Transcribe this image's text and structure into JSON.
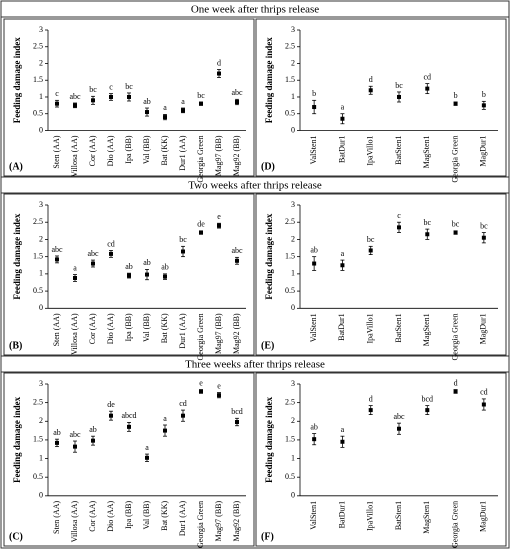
{
  "row_titles": [
    "One week after thrips release",
    "Two weeks after thrips release",
    "Three weeks after thrips release"
  ],
  "chart_data": [
    {
      "type": "errorbar",
      "label": "(A)",
      "ylabel": "Feeding damage index",
      "ylim": [
        0,
        3
      ],
      "yticks": [
        0,
        0.5,
        1,
        1.5,
        2,
        2.5,
        3
      ],
      "color": "#000000",
      "categories": [
        "Sten (AA)",
        "Villosa (AA)",
        "Cor (AA)",
        "Dio (AA)",
        "Ipa (BB)",
        "Val (BB)",
        "Bat (KK)",
        "Dur1 (AA)",
        "Georgia Green",
        "Mag97 (BB)",
        "Mag92 (BB)"
      ],
      "values": [
        0.8,
        0.75,
        0.9,
        1.0,
        1.0,
        0.55,
        0.4,
        0.6,
        0.8,
        1.7,
        0.85
      ],
      "errors": [
        0.1,
        0.07,
        0.12,
        0.1,
        0.12,
        0.12,
        0.08,
        0.07,
        0.05,
        0.12,
        0.08
      ],
      "annotations": [
        "c",
        "abc",
        "bc",
        "c",
        "bc",
        "ab",
        "a",
        "a",
        "bc",
        "d",
        "abc"
      ]
    },
    {
      "type": "errorbar",
      "label": "(D)",
      "ylabel": "Feeding damage index",
      "ylim": [
        0,
        3
      ],
      "yticks": [
        0,
        0.5,
        1,
        1.5,
        2,
        2.5,
        3
      ],
      "color": "#000000",
      "categories": [
        "ValSten1",
        "BatDur1",
        "IpaVillo1",
        "BatSten1",
        "MagSten1",
        "Georgia Green",
        "MagDur1"
      ],
      "values": [
        0.7,
        0.35,
        1.2,
        1.0,
        1.25,
        0.8,
        0.75
      ],
      "errors": [
        0.2,
        0.15,
        0.12,
        0.15,
        0.15,
        0.05,
        0.12
      ],
      "annotations": [
        "b",
        "a",
        "d",
        "bc",
        "cd",
        "b",
        "b"
      ]
    },
    {
      "type": "errorbar",
      "label": "(B)",
      "ylabel": "Feeding damage index",
      "ylim": [
        0,
        3
      ],
      "yticks": [
        0,
        0.5,
        1,
        1.5,
        2,
        2.5,
        3
      ],
      "color": "#000000",
      "categories": [
        "Sten (AA)",
        "Villosa (AA)",
        "Cor (AA)",
        "Dio (AA)",
        "Ipa (BB)",
        "Val (BB)",
        "Bat (KK)",
        "Dur1 (AA)",
        "Georgia Green",
        "Mag97 (BB)",
        "Mag92 (BB)"
      ],
      "values": [
        1.42,
        0.88,
        1.3,
        1.58,
        0.95,
        0.98,
        0.92,
        1.65,
        2.2,
        2.4,
        1.38
      ],
      "errors": [
        0.1,
        0.1,
        0.1,
        0.1,
        0.07,
        0.15,
        0.08,
        0.15,
        0.05,
        0.07,
        0.1
      ],
      "annotations": [
        "abc",
        "a",
        "abc",
        "cd",
        "ab",
        "ab",
        "ab",
        "bc",
        "de",
        "e",
        "abc"
      ]
    },
    {
      "type": "errorbar",
      "label": "(E)",
      "ylabel": "Feeding damage index",
      "ylim": [
        0,
        3
      ],
      "yticks": [
        0,
        0.5,
        1,
        1.5,
        2,
        2.5,
        3
      ],
      "color": "#000000",
      "categories": [
        "ValSten1",
        "BatDur1",
        "IpaVillo1",
        "BatSten1",
        "MagSten1",
        "Georgia Green",
        "MagDur1"
      ],
      "values": [
        1.3,
        1.25,
        1.68,
        2.35,
        2.15,
        2.2,
        2.05
      ],
      "errors": [
        0.2,
        0.15,
        0.12,
        0.15,
        0.15,
        0.05,
        0.15
      ],
      "annotations": [
        "ab",
        "a",
        "bc",
        "c",
        "bc",
        "bc",
        "bc"
      ]
    },
    {
      "type": "errorbar",
      "label": "(C)",
      "ylabel": "Feeding damage index",
      "ylim": [
        0,
        3
      ],
      "yticks": [
        0,
        0.5,
        1,
        1.5,
        2,
        2.5,
        3
      ],
      "color": "#000000",
      "categories": [
        "Sten (AA)",
        "Villosa (AA)",
        "Cor (AA)",
        "Dio (AA)",
        "Ipa (BB)",
        "Val (BB)",
        "Bat (KK)",
        "Dur1 (AA)",
        "Georgia Green",
        "Mag97 (BB)",
        "Mag92 (BB)"
      ],
      "values": [
        1.42,
        1.32,
        1.48,
        2.15,
        1.85,
        1.02,
        1.75,
        2.15,
        2.8,
        2.7,
        1.98
      ],
      "errors": [
        0.1,
        0.15,
        0.12,
        0.12,
        0.12,
        0.1,
        0.15,
        0.15,
        0.05,
        0.07,
        0.1
      ],
      "annotations": [
        "ab",
        "abc",
        "ab",
        "de",
        "abcd",
        "a",
        "a",
        "cd",
        "e",
        "e",
        "bcd"
      ]
    },
    {
      "type": "errorbar",
      "label": "(F)",
      "ylabel": "Feeding damage index",
      "ylim": [
        0,
        3
      ],
      "yticks": [
        0,
        0.5,
        1,
        1.5,
        2,
        2.5,
        3
      ],
      "color": "#000000",
      "categories": [
        "ValSten1",
        "BatDur1",
        "IpaVillo1",
        "BatSten1",
        "MagSten1",
        "Georgia Green",
        "MagDur1"
      ],
      "values": [
        1.52,
        1.45,
        2.3,
        1.8,
        2.3,
        2.8,
        2.45
      ],
      "errors": [
        0.15,
        0.15,
        0.12,
        0.15,
        0.12,
        0.05,
        0.15
      ],
      "annotations": [
        "ab",
        "a",
        "d",
        "abc",
        "bcd",
        "d",
        "cd"
      ]
    }
  ]
}
